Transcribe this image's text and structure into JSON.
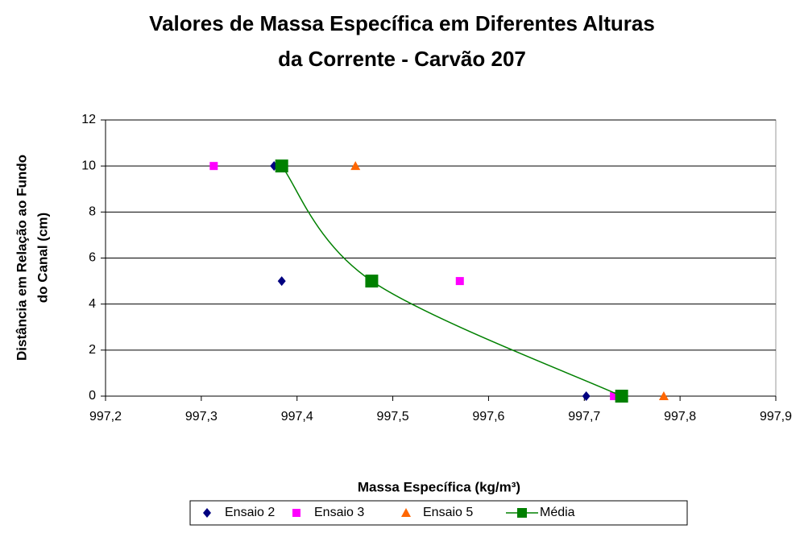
{
  "chart_data": {
    "type": "scatter",
    "title": [
      "Valores de Massa Específica em Diferentes Alturas",
      "da Corrente - Carvão 207"
    ],
    "x_label": "Massa Específica (kg/m³)",
    "y_label": [
      "Distância em Relação ao Fundo",
      "do Canal (cm)"
    ],
    "xlim": [
      997.2,
      997.9
    ],
    "xticks": [
      {
        "value": 997.2,
        "label": "997,2"
      },
      {
        "value": 997.3,
        "label": "997,3"
      },
      {
        "value": 997.4,
        "label": "997,4"
      },
      {
        "value": 997.5,
        "label": "997,5"
      },
      {
        "value": 997.6,
        "label": "997,6"
      },
      {
        "value": 997.7,
        "label": "997,7"
      },
      {
        "value": 997.8,
        "label": "997,8"
      },
      {
        "value": 997.9,
        "label": "997,9"
      }
    ],
    "ylim": [
      0,
      12
    ],
    "yticks": [
      0,
      2,
      4,
      6,
      8,
      10,
      12
    ],
    "grid": true,
    "legend": "bottom",
    "series": [
      {
        "name": "Ensaio 2",
        "color": "#000080",
        "marker": "diamond",
        "x": [
          997.376,
          997.384,
          997.702
        ],
        "values": [
          10,
          5,
          0
        ]
      },
      {
        "name": "Ensaio 3",
        "color": "#ff00ff",
        "marker": "square",
        "x": [
          997.313,
          997.57,
          997.731
        ],
        "values": [
          10,
          5,
          0
        ]
      },
      {
        "name": "Ensaio 5",
        "color": "#ff6600",
        "marker": "triangle",
        "x": [
          997.461,
          997.783
        ],
        "values": [
          10,
          0
        ]
      },
      {
        "name": "Média",
        "color": "#008000",
        "marker": "bigsquare",
        "line": true,
        "x": [
          997.384,
          997.478,
          997.739
        ],
        "values": [
          10,
          5,
          0
        ]
      }
    ]
  }
}
